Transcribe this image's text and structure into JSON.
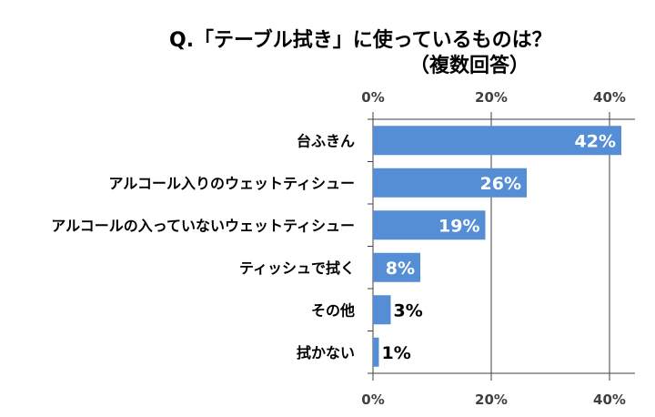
{
  "chart_data": {
    "type": "bar",
    "orientation": "horizontal",
    "title": "Q.「テーブル拭き」に使っているものは？",
    "subtitle": "（複数回答）",
    "categories": [
      "台ふきん",
      "アルコール入りのウェットティシュー",
      "アルコールの入っていないウェットティシュー",
      "ティッシュで拭く",
      "その他",
      "拭かない"
    ],
    "values": [
      42,
      26,
      19,
      8,
      3,
      1
    ],
    "data_labels": [
      "42%",
      "26%",
      "19%",
      "8%",
      "3%",
      "1%"
    ],
    "xlim": [
      0,
      44
    ],
    "x_ticks": [
      0,
      20,
      40
    ],
    "x_tick_labels": [
      "0%",
      "20%",
      "40%"
    ],
    "x_axis_position": "top-and-bottom",
    "grid": true,
    "bar_color": "#558ED5",
    "xlabel": "",
    "ylabel": ""
  }
}
